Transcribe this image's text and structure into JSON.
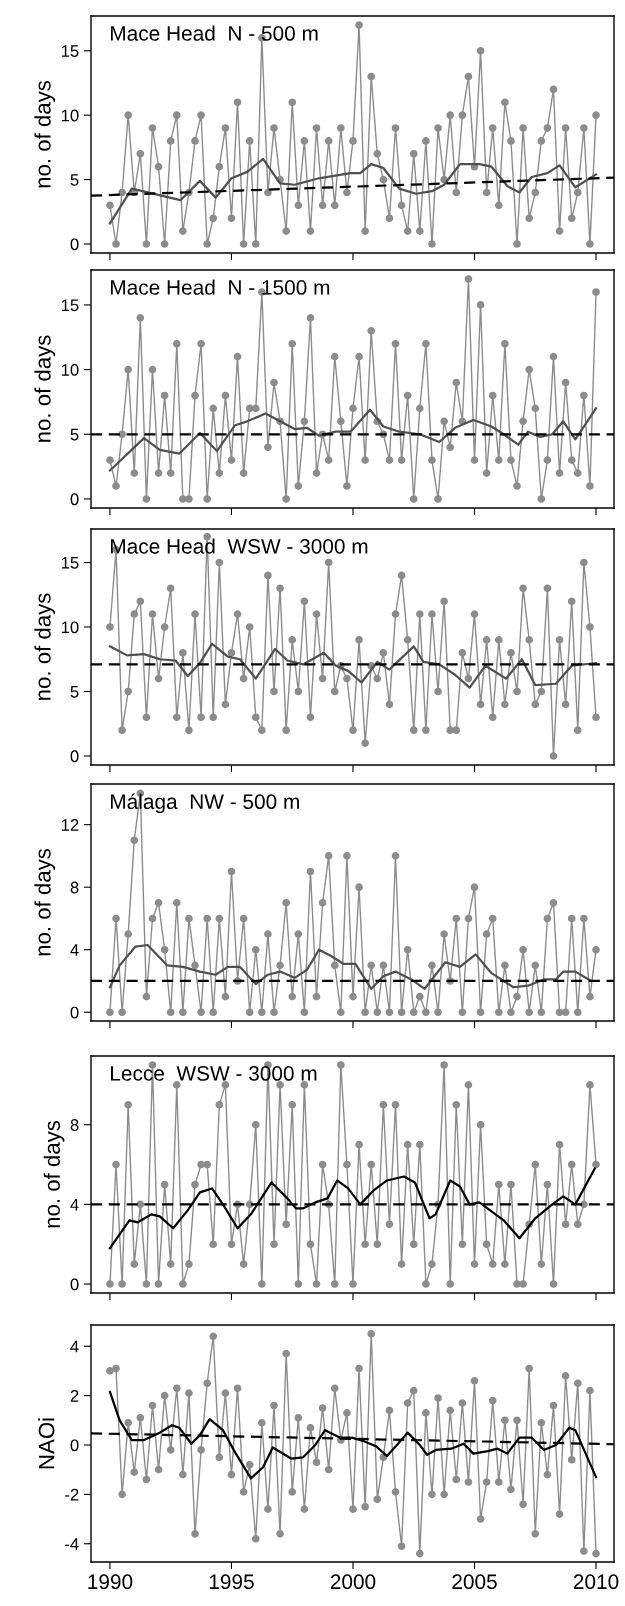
{
  "chart_data": [
    {
      "type": "line",
      "title": "Mace Head  N - 500 m",
      "ylabel": "no. of days",
      "xlim": [
        1989.22,
        2010.74
      ],
      "ylim": [
        -0.7,
        17.7
      ],
      "xticks": [
        1990,
        1995,
        2000,
        2005,
        2010
      ],
      "yticks": [
        0,
        5,
        10,
        15
      ],
      "tick_labels": "y",
      "series": [
        {
          "type": "line",
          "color": "#8c8c8c",
          "marker": "circle",
          "x": [
            1990,
            1990.25,
            1990.5,
            1990.75,
            1991,
            1991.25,
            1991.5,
            1991.75,
            1992,
            1992.25,
            1992.5,
            1992.75,
            1993,
            1993.25,
            1993.5,
            1993.75,
            1994,
            1994.25,
            1994.5,
            1994.75,
            1995,
            1995.25,
            1995.5,
            1995.75,
            1996,
            1996.25,
            1996.5,
            1996.75,
            1997,
            1997.25,
            1997.5,
            1997.75,
            1998,
            1998.25,
            1998.5,
            1998.75,
            1999,
            1999.25,
            1999.5,
            1999.75,
            2000,
            2000.25,
            2000.5,
            2000.75,
            2001,
            2001.25,
            2001.5,
            2001.75,
            2002,
            2002.25,
            2002.5,
            2002.75,
            2003,
            2003.25,
            2003.5,
            2003.75,
            2004,
            2004.25,
            2004.5,
            2004.75,
            2005,
            2005.25,
            2005.5,
            2005.75,
            2006,
            2006.25,
            2006.5,
            2006.75,
            2007,
            2007.25,
            2007.5,
            2007.75,
            2008,
            2008.25,
            2008.5,
            2008.75,
            2009,
            2009.25,
            2009.5,
            2009.75,
            2010
          ],
          "values": [
            3,
            0,
            4,
            10,
            4,
            7,
            0,
            9,
            6,
            0,
            8,
            10,
            1,
            4,
            8,
            10,
            0,
            2,
            6,
            9,
            2,
            11,
            0,
            8,
            0,
            16,
            4,
            9,
            5,
            1,
            11,
            3,
            8,
            1,
            9,
            3,
            8,
            3,
            9,
            4,
            8,
            17,
            1,
            13,
            7,
            5,
            2,
            9,
            3,
            1,
            7,
            1,
            8,
            0,
            9,
            5,
            10,
            4,
            10,
            13,
            6,
            15,
            4,
            9,
            3,
            11,
            8,
            0,
            9,
            2,
            4,
            8,
            9,
            12,
            1,
            9,
            2,
            4,
            9,
            0,
            10
          ]
        },
        {
          "type": "line",
          "color": "#505050",
          "x": [
            1990,
            1990.9,
            1992.9,
            1993.7,
            1994.35,
            1995.0,
            1995.65,
            1996.3,
            1997.0,
            1997.6,
            1998.6,
            1999.9,
            2000.3,
            2000.75,
            2001.25,
            2001.9,
            2002.6,
            2003.25,
            2003.75,
            2004.4,
            2005.2,
            2005.7,
            2006.35,
            2006.85,
            2007.35,
            2008.0,
            2008.5,
            2009.15,
            2010
          ],
          "values": [
            1.6,
            4.3,
            3.4,
            4.9,
            3.6,
            5.1,
            5.6,
            6.6,
            4.7,
            4.6,
            5.1,
            5.5,
            5.5,
            6.2,
            5.9,
            4.3,
            3.9,
            4.1,
            4.6,
            6.2,
            6.2,
            6.0,
            4.5,
            4.0,
            5.2,
            5.5,
            6.1,
            4.4,
            5.4
          ]
        },
        {
          "type": "line",
          "color": "#000000",
          "line_style": "dashed",
          "x": [
            1989.22,
            2010.74
          ],
          "values": [
            3.75,
            5.15
          ]
        }
      ]
    },
    {
      "type": "line",
      "title": "Mace Head  N - 1500 m",
      "ylabel": "no. of days",
      "xlim": [
        1989.22,
        2010.74
      ],
      "ylim": [
        -0.7,
        17.7
      ],
      "xticks": [
        1990,
        1995,
        2000,
        2005,
        2010
      ],
      "yticks": [
        0,
        5,
        10,
        15
      ],
      "tick_labels": "y",
      "ref_lines": [
        {
          "axis": "y",
          "value": 5,
          "color": "#000000",
          "line_style": "dashed"
        }
      ],
      "series": [
        {
          "type": "line",
          "color": "#8c8c8c",
          "marker": "circle",
          "x": [
            1990,
            1990.25,
            1990.5,
            1990.75,
            1991,
            1991.25,
            1991.5,
            1991.75,
            1992,
            1992.25,
            1992.5,
            1992.75,
            1993,
            1993.25,
            1993.5,
            1993.75,
            1994,
            1994.25,
            1994.5,
            1994.75,
            1995,
            1995.25,
            1995.5,
            1995.75,
            1996,
            1996.25,
            1996.5,
            1996.75,
            1997,
            1997.25,
            1997.5,
            1997.75,
            1998,
            1998.25,
            1998.5,
            1998.75,
            1999,
            1999.25,
            1999.5,
            1999.75,
            2000,
            2000.25,
            2000.5,
            2000.75,
            2001,
            2001.25,
            2001.5,
            2001.75,
            2002,
            2002.25,
            2002.5,
            2002.75,
            2003,
            2003.25,
            2003.5,
            2003.75,
            2004,
            2004.25,
            2004.5,
            2004.75,
            2005,
            2005.25,
            2005.5,
            2005.75,
            2006,
            2006.25,
            2006.5,
            2006.75,
            2007,
            2007.25,
            2007.5,
            2007.75,
            2008,
            2008.25,
            2008.5,
            2008.75,
            2009,
            2009.25,
            2009.5,
            2009.75,
            2010
          ],
          "values": [
            3,
            1,
            5,
            10,
            2,
            14,
            0,
            10,
            2,
            8,
            2,
            12,
            0,
            0,
            8,
            12,
            0,
            7,
            2,
            8,
            3,
            11,
            2,
            7,
            7,
            16,
            4,
            9,
            6,
            0,
            12,
            1,
            6,
            14,
            2,
            5,
            3,
            11,
            6,
            1,
            7,
            11,
            3,
            13,
            6,
            5,
            3,
            12,
            3,
            8,
            0,
            7,
            12,
            3,
            0,
            6,
            4,
            9,
            6,
            17,
            3,
            15,
            2,
            8,
            3,
            12,
            3,
            1,
            6,
            10,
            7,
            0,
            3,
            11,
            2,
            9,
            3,
            2,
            8,
            1,
            16
          ]
        },
        {
          "type": "line",
          "color": "#505050",
          "x": [
            1990,
            1991.4,
            1992.05,
            1992.85,
            1993.7,
            1994.4,
            1995.15,
            1995.65,
            1996.4,
            1997.0,
            1997.6,
            1998.1,
            1998.6,
            1999.3,
            1999.9,
            2000.7,
            2001.25,
            2001.9,
            2002.75,
            2003.55,
            2004.2,
            2004.95,
            2005.7,
            2006.2,
            2006.8,
            2007.2,
            2007.7,
            2008.2,
            2008.65,
            2009.15,
            2010
          ],
          "values": [
            2.2,
            4.7,
            3.8,
            3.5,
            5.1,
            3.7,
            5.7,
            6.0,
            6.6,
            6.0,
            5.4,
            5.5,
            4.9,
            5.2,
            5.2,
            6.9,
            5.6,
            5.2,
            5.0,
            4.4,
            5.5,
            6.1,
            5.6,
            5.0,
            4.2,
            5.2,
            4.8,
            5.0,
            6.0,
            4.6,
            7.0
          ]
        }
      ]
    },
    {
      "type": "line",
      "title": "Mace Head  WSW - 3000 m",
      "ylabel": "no. of days",
      "xlim": [
        1989.22,
        2010.74
      ],
      "ylim": [
        -0.7,
        17.6
      ],
      "xticks": [
        1990,
        1995,
        2000,
        2005,
        2010
      ],
      "yticks": [
        0,
        5,
        10,
        15
      ],
      "tick_labels": "y",
      "ref_lines": [
        {
          "axis": "y",
          "value": 7.1,
          "color": "#000000",
          "line_style": "dashed"
        }
      ],
      "series": [
        {
          "type": "line",
          "color": "#8c8c8c",
          "marker": "circle",
          "x": [
            1990,
            1990.25,
            1990.5,
            1990.75,
            1991,
            1991.25,
            1991.5,
            1991.75,
            1992,
            1992.25,
            1992.5,
            1992.75,
            1993,
            1993.25,
            1993.5,
            1993.75,
            1994,
            1994.25,
            1994.5,
            1994.75,
            1995,
            1995.25,
            1995.5,
            1995.75,
            1996,
            1996.25,
            1996.5,
            1996.75,
            1997,
            1997.25,
            1997.5,
            1997.75,
            1998,
            1998.25,
            1998.5,
            1998.75,
            1999,
            1999.25,
            1999.5,
            1999.75,
            2000,
            2000.25,
            2000.5,
            2000.75,
            2001,
            2001.25,
            2001.5,
            2001.75,
            2002,
            2002.25,
            2002.5,
            2002.75,
            2003,
            2003.25,
            2003.5,
            2003.75,
            2004,
            2004.25,
            2004.5,
            2004.75,
            2005,
            2005.25,
            2005.5,
            2005.75,
            2006,
            2006.25,
            2006.5,
            2006.75,
            2007,
            2007.25,
            2007.5,
            2007.75,
            2008,
            2008.25,
            2008.5,
            2008.75,
            2009,
            2009.25,
            2009.5,
            2009.75,
            2010
          ],
          "values": [
            10,
            16,
            2,
            5,
            11,
            12,
            3,
            11,
            6,
            10,
            13,
            3,
            8,
            2,
            11,
            3,
            17,
            3,
            15,
            4,
            8,
            11,
            6,
            10,
            3,
            2,
            14,
            5,
            13,
            2,
            9,
            5,
            12,
            3,
            11,
            6,
            15,
            5,
            7,
            6,
            2,
            9,
            1,
            7,
            6,
            8,
            4,
            11,
            14,
            9,
            2,
            11,
            2,
            11,
            5,
            12,
            2,
            2,
            8,
            6,
            11,
            4,
            9,
            3,
            9,
            4,
            8,
            5,
            13,
            9,
            4,
            5,
            13,
            0,
            9,
            4,
            12,
            2,
            15,
            10,
            3
          ]
        },
        {
          "type": "line",
          "color": "#505050",
          "x": [
            1990,
            1990.7,
            1991.4,
            1992.05,
            1992.7,
            1993.2,
            1993.7,
            1994.2,
            1994.85,
            1995.35,
            1996.0,
            1996.8,
            1997.3,
            1997.95,
            1998.8,
            1999.3,
            1999.8,
            2000.35,
            2001.0,
            2001.5,
            2002.5,
            2002.9,
            2003.55,
            2004.2,
            2004.8,
            2005.45,
            2006.3,
            2006.95,
            2007.5,
            2008.35,
            2009.0,
            2010
          ],
          "values": [
            8.5,
            7.8,
            7.9,
            7.5,
            7.4,
            6.2,
            7.2,
            8.7,
            7.7,
            7.5,
            6.0,
            8.3,
            7.4,
            7.1,
            8.0,
            7.0,
            6.6,
            5.7,
            7.3,
            6.7,
            8.5,
            7.3,
            7.1,
            6.3,
            5.3,
            7.0,
            6.0,
            7.5,
            5.5,
            5.6,
            7.0,
            7.2
          ]
        }
      ]
    },
    {
      "type": "line",
      "title": "Málaga  NW - 500 m",
      "ylabel": "no. of days",
      "xlim": [
        1989.22,
        2010.74
      ],
      "ylim": [
        -0.56,
        14.6
      ],
      "xticks": [
        1990,
        1995,
        2000,
        2005,
        2010
      ],
      "yticks": [
        0,
        4,
        8,
        12
      ],
      "tick_labels": "y",
      "ref_lines": [
        {
          "axis": "y",
          "value": 2,
          "color": "#000000",
          "line_style": "dashed"
        }
      ],
      "series": [
        {
          "type": "line",
          "color": "#8c8c8c",
          "marker": "circle",
          "x": [
            1990,
            1990.25,
            1990.5,
            1990.75,
            1991,
            1991.25,
            1991.5,
            1991.75,
            1992,
            1992.25,
            1992.5,
            1992.75,
            1993,
            1993.25,
            1993.5,
            1993.75,
            1994,
            1994.25,
            1994.5,
            1994.75,
            1995,
            1995.25,
            1995.5,
            1995.75,
            1996,
            1996.25,
            1996.5,
            1996.75,
            1997,
            1997.25,
            1997.5,
            1997.75,
            1998,
            1998.25,
            1998.5,
            1998.75,
            1999,
            1999.25,
            1999.5,
            1999.75,
            2000,
            2000.25,
            2000.5,
            2000.75,
            2001,
            2001.25,
            2001.5,
            2001.75,
            2002,
            2002.25,
            2002.5,
            2002.75,
            2003,
            2003.25,
            2003.5,
            2003.75,
            2004,
            2004.25,
            2004.5,
            2004.75,
            2005,
            2005.25,
            2005.5,
            2005.75,
            2006,
            2006.25,
            2006.5,
            2006.75,
            2007,
            2007.25,
            2007.5,
            2007.75,
            2008,
            2008.25,
            2008.5,
            2008.75,
            2009,
            2009.25,
            2009.5,
            2009.75,
            2010
          ],
          "values": [
            0,
            6,
            0,
            5,
            11,
            14,
            1,
            6,
            7,
            4,
            0,
            7,
            0,
            6,
            3,
            0,
            6,
            0,
            6,
            1,
            9,
            2,
            6,
            0,
            4,
            0,
            5,
            0,
            3,
            7,
            1,
            5,
            0,
            9,
            1,
            7,
            10,
            3,
            0,
            10,
            1,
            8,
            0,
            3,
            0,
            3,
            0,
            10,
            0,
            4,
            0,
            1,
            0,
            3,
            0,
            5,
            2,
            6,
            0,
            6,
            8,
            0,
            5,
            6,
            0,
            3,
            0,
            1,
            4,
            0,
            3,
            0,
            6,
            7,
            0,
            0,
            6,
            0,
            6,
            1,
            4
          ]
        },
        {
          "type": "line",
          "color": "#505050",
          "x": [
            1990,
            1990.4,
            1991.05,
            1991.55,
            1992.35,
            1993.0,
            1993.7,
            1994.35,
            1994.85,
            1995.35,
            1996.0,
            1996.5,
            1997.0,
            1997.6,
            1998.1,
            1998.6,
            1999.1,
            1999.6,
            2000.1,
            2000.75,
            2001.25,
            2001.75,
            2002.4,
            2002.95,
            2003.8,
            2004.4,
            2005.05,
            2005.7,
            2006.6,
            2007.2,
            2007.85,
            2008.35,
            2008.65,
            2009.15,
            2009.8
          ],
          "values": [
            1.6,
            3.0,
            4.2,
            4.3,
            3.0,
            2.9,
            2.6,
            2.4,
            2.9,
            2.9,
            1.8,
            2.4,
            2.6,
            2.2,
            2.7,
            4.0,
            3.6,
            3.1,
            3.1,
            1.5,
            2.3,
            2.6,
            2.1,
            1.5,
            3.2,
            2.9,
            3.7,
            2.5,
            1.6,
            1.7,
            2.1,
            2.1,
            2.6,
            2.6,
            2.0
          ]
        }
      ]
    },
    {
      "type": "line",
      "title": "Lecce  WSW - 3000 m",
      "ylabel": "no. of days",
      "xlim": [
        1989.22,
        2010.74
      ],
      "ylim": [
        -0.45,
        11.45
      ],
      "xticks": [
        1990,
        1995,
        2000,
        2005,
        2010
      ],
      "yticks": [
        0,
        4,
        8
      ],
      "tick_labels": "y",
      "ref_lines": [
        {
          "axis": "y",
          "value": 4,
          "color": "#000000",
          "line_style": "dashed"
        }
      ],
      "series": [
        {
          "type": "line",
          "color": "#8c8c8c",
          "marker": "circle",
          "x": [
            1990,
            1990.25,
            1990.5,
            1990.75,
            1991,
            1991.25,
            1991.5,
            1991.75,
            1992,
            1992.25,
            1992.5,
            1992.75,
            1993,
            1993.25,
            1993.5,
            1993.75,
            1994,
            1994.25,
            1994.5,
            1994.75,
            1995,
            1995.25,
            1995.5,
            1995.75,
            1996,
            1996.25,
            1996.5,
            1996.75,
            1997,
            1997.25,
            1997.5,
            1997.75,
            1998,
            1998.25,
            1998.5,
            1998.75,
            1999,
            1999.25,
            1999.5,
            1999.75,
            2000,
            2000.25,
            2000.5,
            2000.75,
            2001,
            2001.25,
            2001.5,
            2001.75,
            2002,
            2002.25,
            2002.5,
            2002.75,
            2003,
            2003.25,
            2003.5,
            2003.75,
            2004,
            2004.25,
            2004.5,
            2004.75,
            2005,
            2005.25,
            2005.5,
            2005.75,
            2006,
            2006.25,
            2006.5,
            2006.75,
            2007,
            2007.25,
            2007.5,
            2007.75,
            2008,
            2008.25,
            2008.5,
            2008.75,
            2009,
            2009.25,
            2009.5,
            2009.75,
            2010
          ],
          "values": [
            0,
            6,
            0,
            9,
            1,
            4,
            0,
            11,
            0,
            5,
            1,
            10,
            0,
            1,
            5,
            6,
            6,
            2,
            9,
            10,
            2,
            4,
            1,
            4,
            8,
            0,
            11,
            2,
            10,
            3,
            9,
            0,
            10,
            2,
            0,
            6,
            4,
            0,
            11,
            6,
            0,
            7,
            2,
            6,
            2,
            9,
            3,
            9,
            1,
            7,
            2,
            7,
            0,
            1,
            4,
            11,
            0,
            9,
            2,
            10,
            1,
            8,
            2,
            1,
            5,
            1,
            5,
            0,
            0,
            3,
            6,
            1,
            5,
            0,
            7,
            3,
            6,
            3,
            4,
            10,
            6
          ]
        },
        {
          "type": "line",
          "color": "#000000",
          "x": [
            1990,
            1990.8,
            1991.15,
            1991.7,
            1992.05,
            1992.6,
            1993.2,
            1993.7,
            1994.2,
            1994.65,
            1995.25,
            1995.8,
            1996.65,
            1997.3,
            1997.65,
            1997.95,
            1998.45,
            1998.95,
            1999.35,
            1999.8,
            2000.3,
            2000.85,
            2001.4,
            2002.1,
            2002.55,
            2003.15,
            2003.4,
            2004.0,
            2004.4,
            2004.8,
            2005.2,
            2006.2,
            2006.85,
            2007.5,
            2008.2,
            2008.65,
            2009.15,
            2009.95
          ],
          "values": [
            1.8,
            3.2,
            3.1,
            3.5,
            3.4,
            2.8,
            3.7,
            4.6,
            4.8,
            4.0,
            2.8,
            3.5,
            5.1,
            4.3,
            3.8,
            3.8,
            4.1,
            4.3,
            5.2,
            4.8,
            4.0,
            4.7,
            5.2,
            5.4,
            5.1,
            3.3,
            3.5,
            5.2,
            4.9,
            4.0,
            4.1,
            3.2,
            2.3,
            3.3,
            4.0,
            4.4,
            4.0,
            5.8
          ]
        }
      ]
    },
    {
      "type": "line",
      "ylabel": "NAOi",
      "xlim": [
        1989.22,
        2010.74
      ],
      "ylim": [
        -4.74,
        4.86
      ],
      "xticks": [
        1990,
        1995,
        2000,
        2005,
        2010
      ],
      "yticks": [
        -4,
        -2,
        0,
        2,
        4
      ],
      "series": [
        {
          "type": "line",
          "color": "#8c8c8c",
          "marker": "circle",
          "x": [
            1990,
            1990.25,
            1990.5,
            1990.75,
            1991,
            1991.25,
            1991.5,
            1991.75,
            1992,
            1992.25,
            1992.5,
            1992.75,
            1993,
            1993.25,
            1993.5,
            1993.75,
            1994,
            1994.25,
            1994.5,
            1994.75,
            1995,
            1995.25,
            1995.5,
            1995.75,
            1996,
            1996.25,
            1996.5,
            1996.75,
            1997,
            1997.25,
            1997.5,
            1997.75,
            1998,
            1998.25,
            1998.5,
            1998.75,
            1999,
            1999.25,
            1999.5,
            1999.75,
            2000,
            2000.25,
            2000.5,
            2000.75,
            2001,
            2001.25,
            2001.5,
            2001.75,
            2002,
            2002.25,
            2002.5,
            2002.75,
            2003,
            2003.25,
            2003.5,
            2003.75,
            2004,
            2004.25,
            2004.5,
            2004.75,
            2005,
            2005.25,
            2005.5,
            2005.75,
            2006,
            2006.25,
            2006.5,
            2006.75,
            2007,
            2007.25,
            2007.5,
            2007.75,
            2008,
            2008.25,
            2008.5,
            2008.75,
            2009,
            2009.25,
            2009.5,
            2009.75,
            2010
          ],
          "values": [
            3.0,
            3.1,
            -2.0,
            0.9,
            -1.1,
            1.1,
            -1.4,
            1.6,
            -1.0,
            2.0,
            -0.2,
            2.3,
            -1.2,
            2.1,
            -3.6,
            -0.2,
            2.5,
            4.4,
            -0.5,
            2.1,
            -1.2,
            2.3,
            -1.9,
            -0.8,
            -3.8,
            0.9,
            -2.6,
            1.6,
            -3.6,
            3.7,
            -1.9,
            1.1,
            -2.6,
            0.7,
            -0.7,
            1.5,
            -1.0,
            2.3,
            0.2,
            1.3,
            -2.6,
            3.1,
            -2.5,
            4.5,
            -2.2,
            -0.5,
            1.4,
            -1.9,
            -4.1,
            1.7,
            2.2,
            -4.4,
            1.3,
            -2.0,
            1.9,
            -2.0,
            1.4,
            -1.4,
            1.7,
            -1.5,
            2.6,
            -3.0,
            -1.5,
            1.8,
            -1.5,
            1.0,
            -1.8,
            1.0,
            -2.4,
            3.1,
            -3.6,
            0.9,
            -1.2,
            1.6,
            -2.8,
            2.8,
            -0.6,
            2.5,
            -4.3,
            2.2,
            -4.4
          ]
        },
        {
          "type": "line",
          "color": "#000000",
          "x": [
            1990,
            1990.4,
            1990.9,
            1991.4,
            1992.05,
            1992.55,
            1992.85,
            1993.35,
            1993.7,
            1994.1,
            1994.65,
            1995.15,
            1995.8,
            1996.3,
            1996.7,
            1997.45,
            1997.95,
            1998.45,
            1998.85,
            1999.45,
            1999.95,
            2000.45,
            2000.95,
            2001.4,
            2001.9,
            2002.25,
            2002.75,
            2003.05,
            2003.4,
            2004.05,
            2004.55,
            2004.95,
            2005.55,
            2005.95,
            2006.35,
            2006.85,
            2007.35,
            2007.85,
            2008.35,
            2008.9,
            2009.15,
            2010
          ],
          "values": [
            2.15,
            1.0,
            0.2,
            0.2,
            0.5,
            0.8,
            0.7,
            0.05,
            0.4,
            1.05,
            0.6,
            -0.3,
            -1.35,
            -0.9,
            -0.1,
            -0.55,
            -0.5,
            0.0,
            0.6,
            0.3,
            0.3,
            0.15,
            -0.05,
            -0.45,
            0.1,
            0.5,
            0.0,
            -0.4,
            -0.2,
            -0.15,
            0.05,
            -0.35,
            -0.25,
            -0.15,
            -0.35,
            0.3,
            0.3,
            -0.2,
            0.0,
            0.7,
            0.6,
            -1.3
          ]
        },
        {
          "type": "line",
          "color": "#000000",
          "line_style": "dashed",
          "x": [
            1989.22,
            2010.74
          ],
          "values": [
            0.47,
            0.03
          ]
        }
      ]
    }
  ]
}
